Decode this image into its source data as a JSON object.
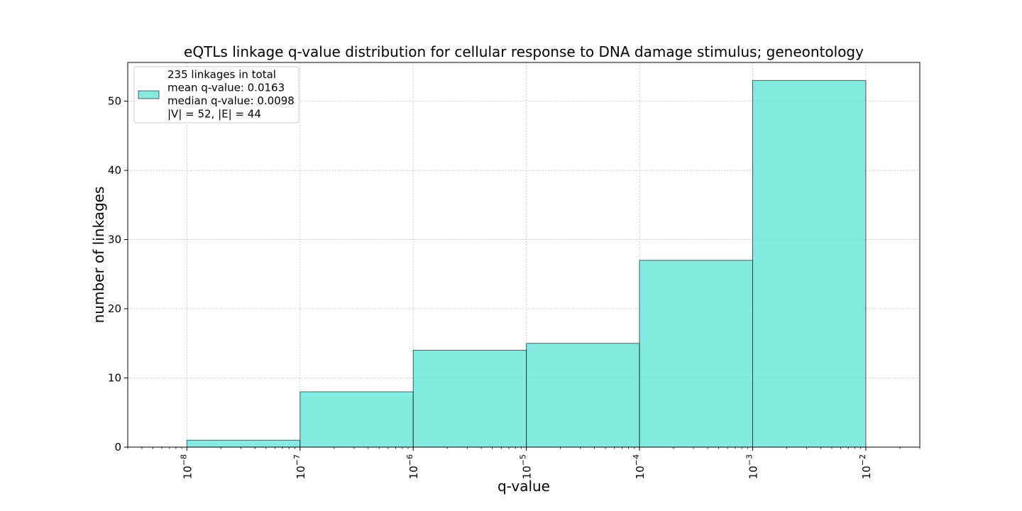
{
  "chart_data": {
    "type": "bar",
    "title": "eQTLs linkage q-value distribution for cellular response to DNA damage stimulus; geneontology",
    "xlabel": "q-value",
    "ylabel": "number of linkages",
    "x_scale": "log",
    "bins": [
      {
        "x0": 1e-08,
        "x1": 1e-07,
        "value": 1
      },
      {
        "x0": 1e-07,
        "x1": 1e-06,
        "value": 8
      },
      {
        "x0": 1e-06,
        "x1": 1e-05,
        "value": 14
      },
      {
        "x0": 1e-05,
        "x1": 0.0001,
        "value": 15
      },
      {
        "x0": 0.0001,
        "x1": 0.001,
        "value": 27
      },
      {
        "x0": 0.001,
        "x1": 0.01,
        "value": 53
      }
    ],
    "xlim": [
      3e-09,
      0.03
    ],
    "ylim": [
      0,
      55.6
    ],
    "y_ticks": [
      0,
      10,
      20,
      30,
      40,
      50
    ],
    "x_ticks": [
      {
        "value": 1e-08,
        "mantissa": "10",
        "exp": "−8"
      },
      {
        "value": 1e-07,
        "mantissa": "10",
        "exp": "−7"
      },
      {
        "value": 1e-06,
        "mantissa": "10",
        "exp": "−6"
      },
      {
        "value": 1e-05,
        "mantissa": "10",
        "exp": "−5"
      },
      {
        "value": 0.0001,
        "mantissa": "10",
        "exp": "−4"
      },
      {
        "value": 0.001,
        "mantissa": "10",
        "exp": "−3"
      },
      {
        "value": 0.01,
        "mantissa": "10",
        "exp": "−2"
      }
    ],
    "grid": true,
    "legend": {
      "placement": "top-left",
      "lines": [
        "235 linkages in total",
        "mean q-value: 0.0163",
        "median q-value: 0.0098",
        "|V| = 52, |E| = 44"
      ]
    },
    "colors": {
      "bar_fill": "#40e0d0",
      "bar_edge": "#000000",
      "grid": "#b0b0b0"
    }
  }
}
